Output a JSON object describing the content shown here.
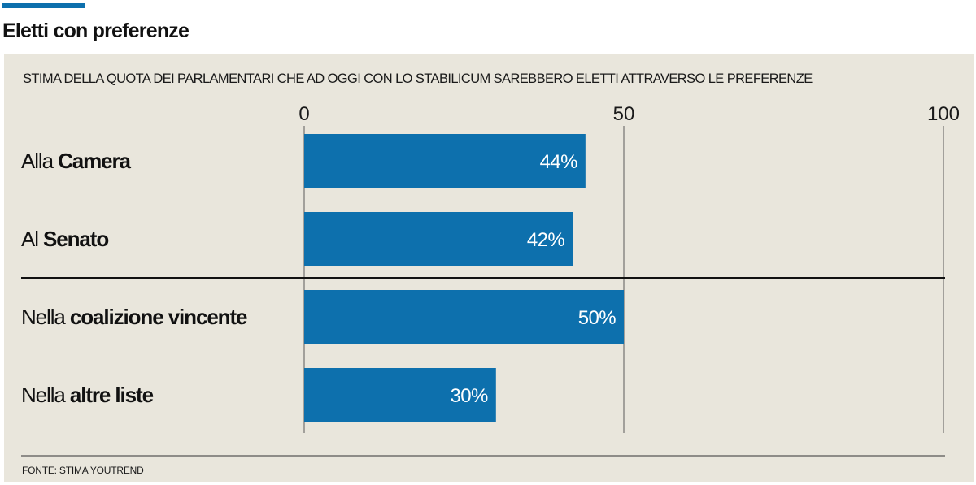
{
  "colors": {
    "bar": "#0d70ad",
    "accent_rule": "#0d70ad",
    "panel_background": "#e9e6dc",
    "gridline": "#5a5a5a",
    "separator": "#111111"
  },
  "chart_data": {
    "type": "bar",
    "orientation": "horizontal",
    "title": "Eletti con preferenze",
    "subtitle": "STIMA DELLA QUOTA DEI PARLAMENTARI CHE AD OGGI CON LO STABILICUM SAREBBERO ELETTI ATTRAVERSO LE PREFERENZE",
    "source": "FONTE: STIMA YOUTREND",
    "xlim": [
      0,
      100
    ],
    "ticks": [
      "0",
      "50",
      "100"
    ],
    "categories": [
      {
        "prefix": "Alla",
        "bold": "Camera"
      },
      {
        "prefix": "Al",
        "bold": "Senato"
      },
      {
        "prefix": "Nella",
        "bold": "coalizione vincente"
      },
      {
        "prefix": "Nella",
        "bold": "altre liste"
      }
    ],
    "values": [
      44,
      42,
      50,
      30
    ],
    "value_labels": [
      "44%",
      "42%",
      "50%",
      "30%"
    ],
    "separator_after_category": 1,
    "grid": true
  }
}
